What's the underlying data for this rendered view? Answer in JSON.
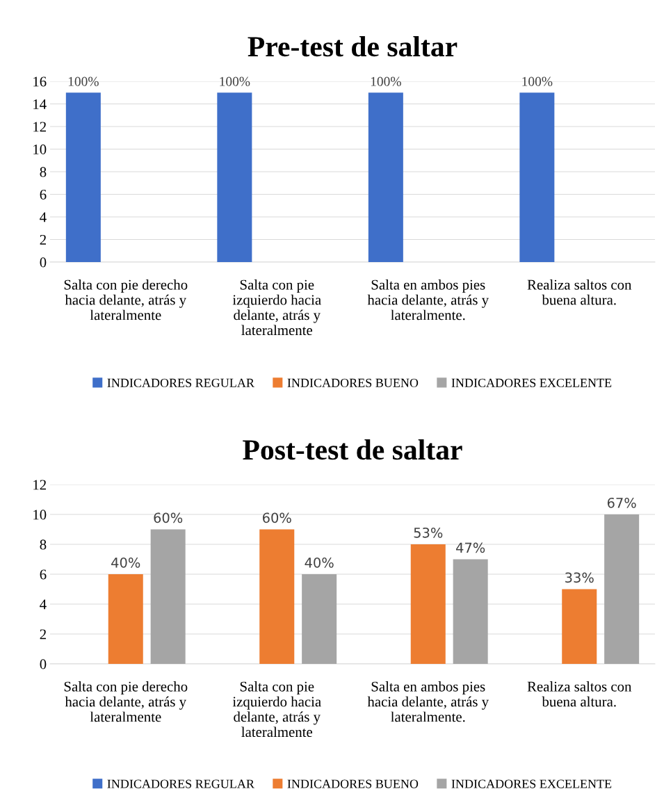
{
  "chart_data": [
    {
      "type": "bar",
      "title": "Pre-test de saltar",
      "categories": [
        "Salta con pie derecho\nhacia delante, atrás y\nlateralmente",
        "Salta con pie\nizquierdo hacia\ndelante, atrás y\nlateralmente",
        "Salta en ambos pies\nhacia delante, atrás y\nlateralmente.",
        "Realiza saltos con\nbuena altura."
      ],
      "series": [
        {
          "name": "INDICADORES REGULAR",
          "color": "#3f6fc9",
          "values": [
            15,
            15,
            15,
            15
          ]
        },
        {
          "name": "INDICADORES BUENO",
          "color": "#ed7d31",
          "values": [
            0,
            0,
            0,
            0
          ]
        },
        {
          "name": "INDICADORES EXCELENTE",
          "color": "#a5a5a5",
          "values": [
            0,
            0,
            0,
            0
          ]
        }
      ],
      "annotations": [
        "100%",
        "100%",
        "100%",
        "100%"
      ],
      "ylim": [
        0,
        16
      ],
      "yticks": [
        0,
        2,
        4,
        6,
        8,
        10,
        12,
        14,
        16
      ],
      "grid": "y",
      "legend": "bottom"
    },
    {
      "type": "bar",
      "title": "Post-test de saltar",
      "categories": [
        "Salta con pie derecho\nhacia delante, atrás y\nlateralmente",
        "Salta con pie\nizquierdo hacia\ndelante, atrás y\nlateralmente",
        "Salta en ambos pies\nhacia delante, atrás y\nlateralmente.",
        "Realiza saltos con\nbuena altura."
      ],
      "series": [
        {
          "name": "INDICADORES REGULAR",
          "color": "#3f6fc9",
          "values": [
            0,
            0,
            0,
            0
          ]
        },
        {
          "name": "INDICADORES BUENO",
          "color": "#ed7d31",
          "values": [
            6,
            9,
            8,
            5
          ]
        },
        {
          "name": "INDICADORES EXCELENTE",
          "color": "#a5a5a5",
          "values": [
            9,
            6,
            7,
            10
          ]
        }
      ],
      "annotations": [
        "40%",
        "60%",
        "60%",
        "40%",
        "53%",
        "47%",
        "33%",
        "67%"
      ],
      "ylim": [
        0,
        12
      ],
      "yticks": [
        0,
        2,
        4,
        6,
        8,
        10,
        12
      ],
      "grid": "y",
      "legend": "bottom"
    }
  ]
}
